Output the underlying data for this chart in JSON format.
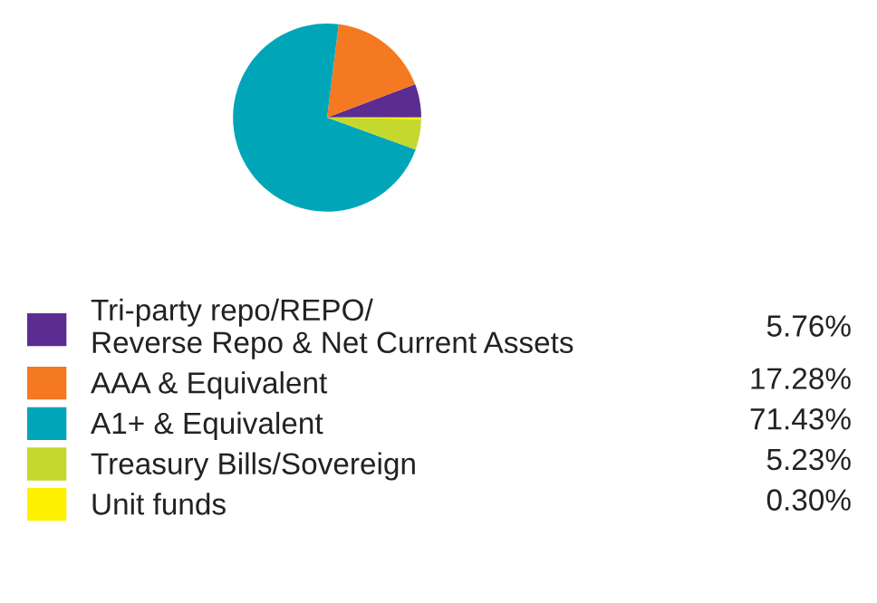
{
  "chart_data": {
    "type": "pie",
    "categories": [
      "Tri-party repo/REPO/\nReverse Repo & Net Current Assets",
      "AAA & Equivalent",
      "A1+ & Equivalent",
      "Treasury Bills/Sovereign",
      "Unit funds"
    ],
    "values": [
      5.76,
      17.28,
      71.43,
      5.23,
      0.3
    ],
    "colors": [
      "#5c2d91",
      "#f47920",
      "#00a6b8",
      "#c4d82e",
      "#fff200"
    ],
    "value_labels": [
      "5.76%",
      "17.28%",
      "71.43%",
      "5.23%",
      "0.30%"
    ],
    "legend": "bottom"
  }
}
